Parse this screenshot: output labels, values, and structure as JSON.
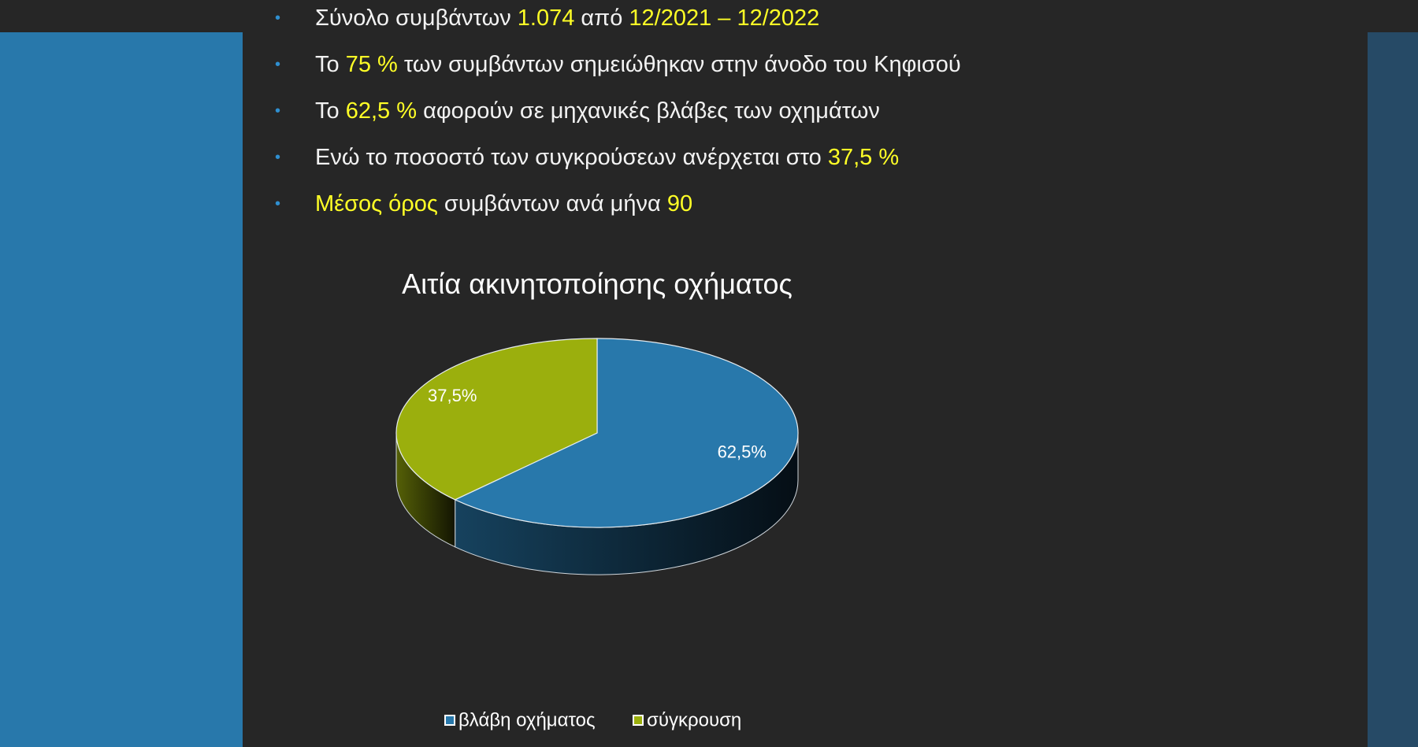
{
  "bullets": [
    {
      "parts": [
        {
          "text": "Σύνολο συμβάντων ",
          "hl": false
        },
        {
          "text": "1.074",
          "hl": true
        },
        {
          "text": " από ",
          "hl": false
        },
        {
          "text": "12/2021 – 12/2022",
          "hl": true
        }
      ]
    },
    {
      "parts": [
        {
          "text": "Το ",
          "hl": false
        },
        {
          "text": "75 %",
          "hl": true
        },
        {
          "text": " των συμβάντων σημειώθηκαν στην άνοδο του Κηφισού",
          "hl": false
        }
      ]
    },
    {
      "parts": [
        {
          "text": "Το ",
          "hl": false
        },
        {
          "text": "62,5 %",
          "hl": true
        },
        {
          "text": " αφορούν σε μηχανικές βλάβες των οχημάτων",
          "hl": false
        }
      ]
    },
    {
      "parts": [
        {
          "text": "Ενώ το ποσοστό των συγκρούσεων ανέρχεται στο ",
          "hl": false
        },
        {
          "text": "37,5 %",
          "hl": true
        }
      ]
    },
    {
      "parts": [
        {
          "text": "Μέσος όρος",
          "hl": true
        },
        {
          "text": " συμβάντων ανά μήνα ",
          "hl": false
        },
        {
          "text": "90",
          "hl": true
        }
      ]
    }
  ],
  "colors": {
    "text": "#f2f2f2",
    "highlight": "#ffff26",
    "bullet": "#2f8fd0",
    "panel_left": "#2878ab",
    "panel_right": "#264a66",
    "slide_bg": "#262626"
  },
  "chart_data": {
    "type": "pie",
    "title": "Αιτία ακινητοποίησης οχήματος",
    "categories": [
      "βλάβη οχήματος",
      "σύγκρουση"
    ],
    "values": [
      62.5,
      37.5
    ],
    "data_labels": [
      "62,5%",
      "37,5%"
    ],
    "colors": [
      "#2878ab",
      "#9baf0d"
    ],
    "style": "3d",
    "legend_position": "bottom"
  }
}
